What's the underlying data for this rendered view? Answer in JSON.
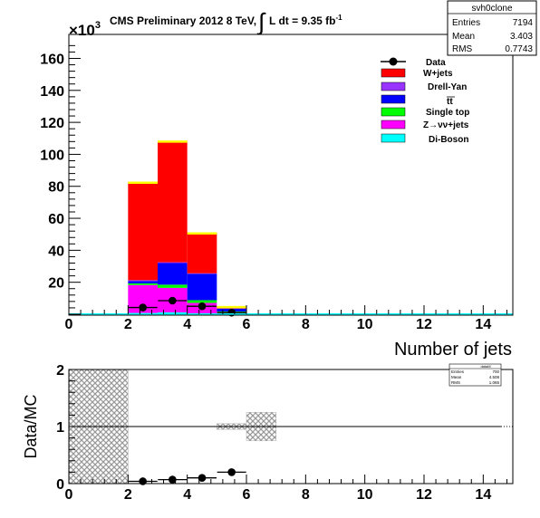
{
  "header": {
    "title_main": "CMS Preliminary 2012 8 TeV,",
    "lumi_prefix": "L dt = 9.35 fb",
    "lumi_exp": "-1",
    "integral_sign": "∫"
  },
  "stats_box_top": {
    "name": "svh0clone",
    "rows": [
      {
        "label": "Entries",
        "value": "7194"
      },
      {
        "label": "Mean",
        "value": "3.403"
      },
      {
        "label": "RMS",
        "value": "0.7743"
      }
    ]
  },
  "stats_box_bottom": {
    "name": "dataM",
    "rows": [
      {
        "label": "Entries",
        "value": "700"
      },
      {
        "label": "Mean",
        "value": "4.508"
      },
      {
        "label": "RMS",
        "value": "1.065"
      }
    ]
  },
  "colors": {
    "wjets": "#ff0000",
    "drellyan": "#9933ff",
    "ttbar": "#0000ff",
    "singletop": "#00ff00",
    "zvv": "#ff00ff",
    "diboson": "#00ffff",
    "topline": "#ffff00",
    "uncert": "#999999"
  },
  "chart_data": [
    {
      "type": "bar",
      "stacked": true,
      "title": "",
      "xlabel": "Number of jets",
      "ylabel": "",
      "y_multiplier": "×10",
      "y_multiplier_exp": "3",
      "xlim": [
        0,
        15
      ],
      "ylim": [
        0,
        175
      ],
      "x_ticks": [
        "0",
        "2",
        "4",
        "6",
        "8",
        "10",
        "12",
        "14"
      ],
      "y_ticks": [
        "20",
        "40",
        "60",
        "80",
        "100",
        "120",
        "140",
        "160"
      ],
      "bin_edges": [
        2,
        3,
        4,
        5,
        6
      ],
      "legend": [
        {
          "label": "Data",
          "kind": "marker"
        },
        {
          "label": "W+jets",
          "color_key": "wjets"
        },
        {
          "label": "Drell-Yan",
          "color_key": "drellyan"
        },
        {
          "label": "tt",
          "color_key": "ttbar",
          "overline": true
        },
        {
          "label": "Single top",
          "color_key": "singletop"
        },
        {
          "label": "Z→νν+jets",
          "color_key": "zvv"
        },
        {
          "label": "Di-Boson",
          "color_key": "diboson"
        }
      ],
      "series": [
        {
          "name": "Di-Boson",
          "color_key": "diboson",
          "values": [
            0.8,
            1.2,
            0.6,
            0.1
          ]
        },
        {
          "name": "Z→νν+jets",
          "color_key": "zvv",
          "values": [
            17.5,
            15.3,
            6.5,
            1.2
          ]
        },
        {
          "name": "Single top",
          "color_key": "singletop",
          "values": [
            1.0,
            2.0,
            1.7,
            0.4
          ]
        },
        {
          "name": "tt",
          "color_key": "ttbar",
          "values": [
            1.5,
            13.5,
            16.5,
            1.8
          ]
        },
        {
          "name": "Drell-Yan",
          "color_key": "drellyan",
          "values": [
            0.5,
            0.5,
            0.3,
            0.1
          ]
        },
        {
          "name": "W+jets",
          "color_key": "wjets",
          "values": [
            61.5,
            76.0,
            25.5,
            1.4
          ]
        }
      ],
      "data_points": {
        "name": "Data",
        "x": [
          2.5,
          3.5,
          4.5,
          5.5
        ],
        "y": [
          4.2,
          8.5,
          5.0,
          1.0
        ]
      }
    },
    {
      "type": "scatter",
      "title": "",
      "xlabel": "",
      "ylabel": "Data/MC",
      "xlim": [
        0,
        15
      ],
      "ylim": [
        0,
        2
      ],
      "x_ticks": [
        "0",
        "2",
        "4",
        "6",
        "8",
        "10",
        "12",
        "14"
      ],
      "y_ticks": [
        "0",
        "1",
        "2"
      ],
      "reference_line": 1,
      "ratio_points": {
        "x": [
          2.5,
          3.5,
          4.5,
          5.5
        ],
        "y": [
          0.04,
          0.07,
          0.1,
          0.2
        ]
      },
      "uncertainty_bands": [
        {
          "x0": 0,
          "x1": 2,
          "y0": 0,
          "y1": 2
        },
        {
          "x0": 5,
          "x1": 6,
          "y0": 0.95,
          "y1": 1.05
        },
        {
          "x0": 6,
          "x1": 7,
          "y0": 0.75,
          "y1": 1.25
        }
      ]
    }
  ]
}
